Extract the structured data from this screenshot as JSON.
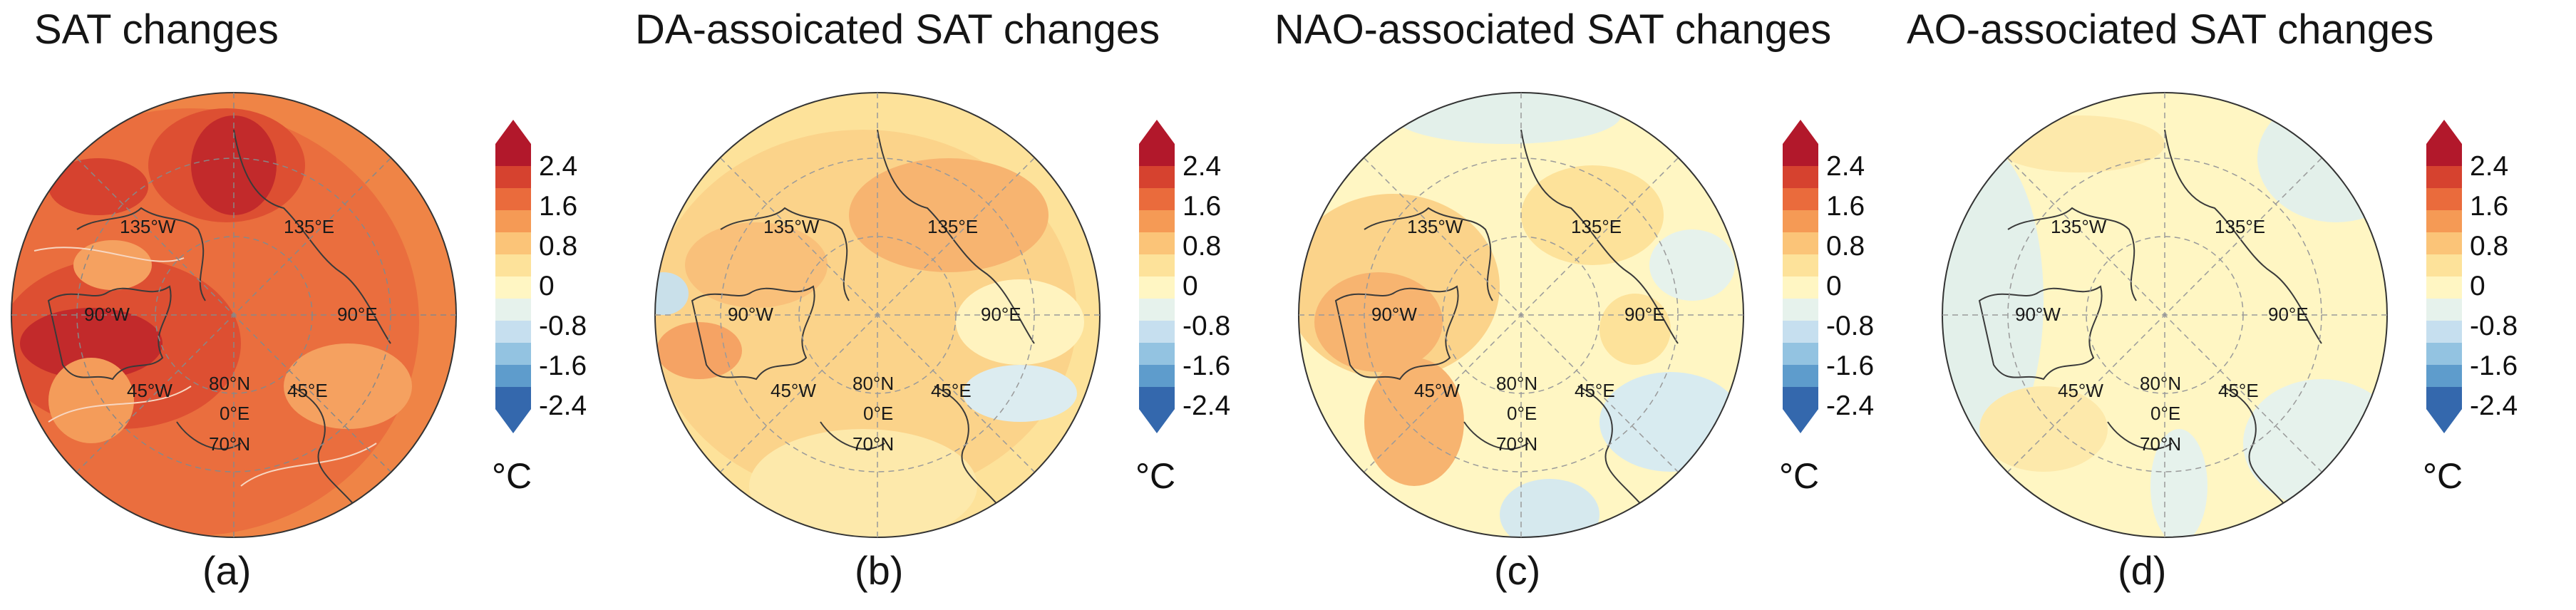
{
  "figure": {
    "panels": [
      {
        "id": "a",
        "title": "SAT changes",
        "caption": "(a)"
      },
      {
        "id": "b",
        "title": "DA-assoicated SAT changes",
        "caption": "(b)"
      },
      {
        "id": "c",
        "title": "NAO-associated SAT changes",
        "caption": "(c)"
      },
      {
        "id": "d",
        "title": "AO-associated SAT changes",
        "caption": "(d)"
      }
    ],
    "map_labels": {
      "lon_135w": "135°W",
      "lon_135e": "135°E",
      "lon_90w": "90°W",
      "lon_90e": "90°E",
      "lon_45w": "45°W",
      "lon_45e": "45°E",
      "lon_0e": "0°E",
      "lat_80n": "80°N",
      "lat_70n": "70°N"
    },
    "colorbar": {
      "ticks": [
        "2.4",
        "1.6",
        "0.8",
        "0",
        "-0.8",
        "-1.6",
        "-2.4"
      ],
      "unit": "°C",
      "colors": [
        "#b2182b",
        "#d6422f",
        "#ea6b3c",
        "#f59a55",
        "#fbc478",
        "#fde29a",
        "#fff6c3",
        "#e6f2ec",
        "#c6dfef",
        "#93c3e1",
        "#5e9ccc",
        "#3468ad"
      ]
    }
  }
}
